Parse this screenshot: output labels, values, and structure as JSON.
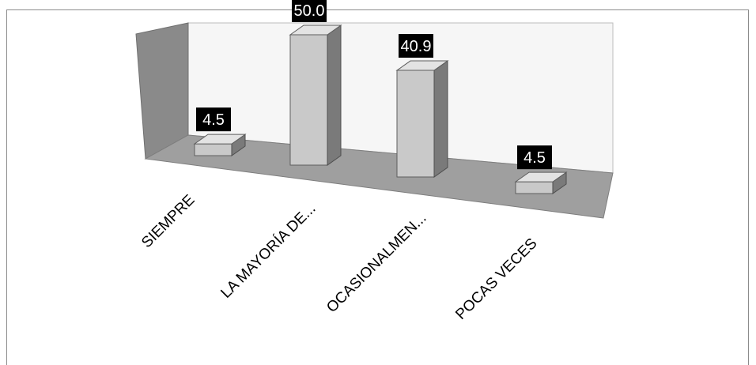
{
  "chart_data": {
    "type": "bar",
    "style": "3d-column",
    "categories": [
      "SIEMPRE",
      "LA MAYORÍA DE...",
      "OCASIONALMEN...",
      "POCAS VECES"
    ],
    "values": [
      4.5,
      50.0,
      40.9,
      4.5
    ],
    "data_labels": [
      "4.5",
      "50.0",
      "40.9",
      "4.5"
    ],
    "title": "",
    "xlabel": "",
    "ylabel": "",
    "ylim": [
      0,
      60
    ],
    "grid": false,
    "legend": "none",
    "colors": {
      "bar_front": "#c9c9c9",
      "bar_side": "#7a7a7a",
      "bar_top": "#e3e3e3",
      "floor": "#9f9f9f",
      "side_wall": "#8a8a8a",
      "back_wall": "#f6f6f6",
      "label_bg": "#000000",
      "label_text": "#ffffff"
    }
  }
}
